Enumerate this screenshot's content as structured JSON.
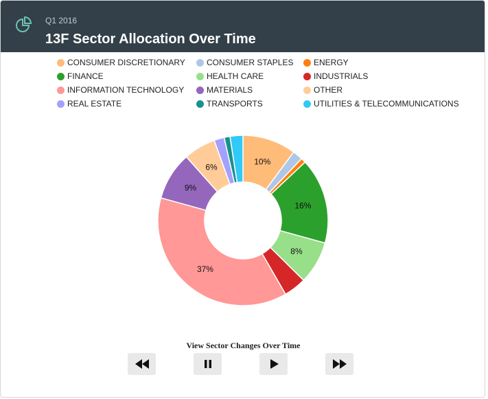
{
  "header": {
    "period": "Q1 2016",
    "title": "13F Sector Allocation Over Time",
    "icon": "pie-chart-icon"
  },
  "legend": [
    {
      "label": "CONSUMER DISCRETIONARY",
      "color": "#ffbb78"
    },
    {
      "label": "CONSUMER STAPLES",
      "color": "#aec7e8"
    },
    {
      "label": "ENERGY",
      "color": "#ff7f0e"
    },
    {
      "label": "FINANCE",
      "color": "#2ca02c"
    },
    {
      "label": "HEALTH CARE",
      "color": "#98df8a"
    },
    {
      "label": "INDUSTRIALS",
      "color": "#d62728"
    },
    {
      "label": "INFORMATION TECHNOLOGY",
      "color": "#ff9896"
    },
    {
      "label": "MATERIALS",
      "color": "#9467bd"
    },
    {
      "label": "OTHER",
      "color": "#ffcc99"
    },
    {
      "label": "REAL ESTATE",
      "color": "#a3a0ff"
    },
    {
      "label": "TRANSPORTS",
      "color": "#17928f"
    },
    {
      "label": "UTILITIES & TELECOMMUNICATIONS",
      "color": "#31c9f7"
    }
  ],
  "chart_data": {
    "type": "pie",
    "donut": true,
    "slices": [
      {
        "label": "CONSUMER DISCRETIONARY",
        "value": 10,
        "color": "#ffbb78",
        "data_label": "10%"
      },
      {
        "label": "CONSUMER STAPLES",
        "value": 1.9,
        "color": "#aec7e8",
        "data_label": ""
      },
      {
        "label": "ENERGY",
        "value": 0.9,
        "color": "#ff7f0e",
        "data_label": ""
      },
      {
        "label": "FINANCE",
        "value": 16,
        "color": "#2ca02c",
        "data_label": "16%"
      },
      {
        "label": "HEALTH CARE",
        "value": 8,
        "color": "#98df8a",
        "data_label": "8%"
      },
      {
        "label": "INDUSTRIALS",
        "value": 4.2,
        "color": "#d62728",
        "data_label": ""
      },
      {
        "label": "INFORMATION TECHNOLOGY",
        "value": 37,
        "color": "#ff9896",
        "data_label": "37%"
      },
      {
        "label": "MATERIALS",
        "value": 9,
        "color": "#9467bd",
        "data_label": "9%"
      },
      {
        "label": "OTHER",
        "value": 6,
        "color": "#ffcc99",
        "data_label": "6%"
      },
      {
        "label": "REAL ESTATE",
        "value": 1.9,
        "color": "#a3a0ff",
        "data_label": ""
      },
      {
        "label": "TRANSPORTS",
        "value": 1.1,
        "color": "#17928f",
        "data_label": ""
      },
      {
        "label": "UTILITIES & TELECOMMUNICATIONS",
        "value": 2.4,
        "color": "#31c9f7",
        "data_label": ""
      }
    ],
    "legend_placement": "top"
  },
  "controls": {
    "label": "View Sector Changes Over Time",
    "buttons": [
      {
        "name": "rewind-button",
        "icon": "rewind-icon"
      },
      {
        "name": "pause-button",
        "icon": "pause-icon"
      },
      {
        "name": "play-button",
        "icon": "play-icon"
      },
      {
        "name": "fast-forward-button",
        "icon": "fast-forward-icon"
      }
    ]
  }
}
